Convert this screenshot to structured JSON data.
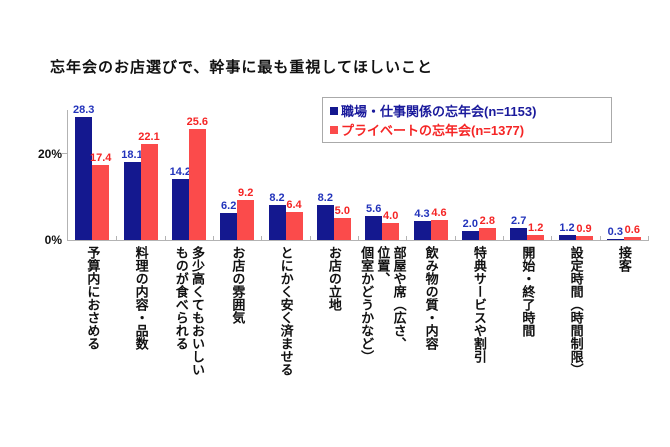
{
  "page": {
    "title": "忘年会のお店選びで、幹事に最も重視してほしいこと"
  },
  "axis": {
    "y_label_top": "20%",
    "y_label_bottom": "0%"
  },
  "legend": {
    "items": [
      {
        "label": "職場・仕事関係の忘年会(n=1153)",
        "marker_color": "#14188f",
        "text_color": "#1a1a9c"
      },
      {
        "label": "プライベートの忘年会(n=1377)",
        "marker_color": "#fb4b4b",
        "text_color": "#f52525"
      }
    ]
  },
  "chart_data": {
    "type": "bar",
    "title": "忘年会のお店選びで、幹事に最も重視してほしいこと",
    "categories": [
      "予算内におさめる",
      "料理の内容・品数",
      "多少高くてもおいしい\nものが食べられる",
      "お店の雰囲気",
      "とにかく安く済ませる",
      "お店の立地",
      "部屋や席（広さ、\n位置、\n個室かどうかなど）",
      "飲み物の質・内容",
      "特典サービスや割引",
      "開始・終了時間",
      "設定時間（時間制限）",
      "接客"
    ],
    "series": [
      {
        "name": "職場・仕事関係の忘年会(n=1153)",
        "color": "#14188f",
        "label_color": "#2233bb",
        "values": [
          28.3,
          18.1,
          14.2,
          6.2,
          8.2,
          8.2,
          5.6,
          4.3,
          2.0,
          2.7,
          1.2,
          0.3
        ]
      },
      {
        "name": "プライベートの忘年会(n=1377)",
        "color": "#fb4b4b",
        "label_color": "#f52525",
        "values": [
          17.4,
          22.1,
          25.6,
          9.2,
          6.4,
          5.0,
          4.0,
          4.6,
          2.8,
          1.2,
          0.9,
          0.6
        ]
      }
    ],
    "ylim": [
      0,
      30
    ],
    "y_ticks_labeled": [
      0,
      20
    ],
    "grid": false,
    "legend_position": "top-right",
    "value_labels": "above-bars, one decimal"
  }
}
